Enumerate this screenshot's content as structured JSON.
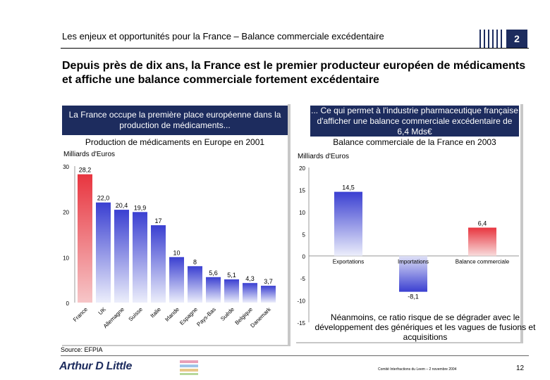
{
  "header": {
    "title_part1": "Les enjeux et opportunités pour la France",
    "title_sep": " – ",
    "title_part2": "Balance commerciale excédentaire",
    "section_number": "2"
  },
  "main_title": "Depuis près de dix ans, la France est le premier producteur européen de médicaments et affiche une balance commerciale fortement excédentaire",
  "left_panel": {
    "callout": "La France occupe la première place européenne dans la production de médicaments...",
    "chart_title": "Production de médicaments en Europe en 2001",
    "unit": "Milliards d'Euros"
  },
  "right_panel": {
    "callout": "... Ce qui permet à l'industrie pharmaceutique française d'afficher une balance commerciale excédentaire de 6,4 Mds€",
    "chart_title": "Balance commerciale de la France en 2003",
    "unit": "Milliards d'Euros",
    "note": "Néanmoins, ce ratio risque de se dégrader avec le développement des génériques et les vagues de fusions et acquisitions"
  },
  "footer": {
    "source": "Source: EFPIA",
    "logo_text": "Arthur D Little",
    "event": "Comité Interfractions du Leem – 2 novembre 2004",
    "page_number": "12"
  },
  "colors": {
    "navy": "#1d2c5e",
    "red": "#e8353f",
    "blue": "#3a3fd1"
  },
  "chart_data": [
    {
      "type": "bar",
      "title": "Production de médicaments en Europe en 2001",
      "ylabel": "Milliards d'Euros",
      "categories": [
        "France",
        "UK",
        "Allemagne",
        "Suisse",
        "Italie",
        "Irlande",
        "Espagne",
        "Pays-Bas",
        "Suède",
        "Belgique",
        "Danemark"
      ],
      "values": [
        28.2,
        22.0,
        20.4,
        19.9,
        17,
        10,
        8,
        5.6,
        5.1,
        4.3,
        3.7
      ],
      "value_labels": [
        "28,2",
        "22,0",
        "20,4",
        "19,9",
        "17",
        "10",
        "8",
        "5,6",
        "5,1",
        "4,3",
        "3,7"
      ],
      "yticks": [
        "30",
        "20",
        "10",
        "0"
      ],
      "ylim": [
        0,
        30
      ]
    },
    {
      "type": "bar",
      "title": "Balance commerciale de la France en 2003",
      "ylabel": "Milliards d'Euros",
      "categories": [
        "Exportations",
        "Importations",
        "Balance commerciale"
      ],
      "values": [
        14.5,
        -8.1,
        6.4
      ],
      "value_labels": [
        "14,5",
        "-8,1",
        "6,4"
      ],
      "yticks": [
        "20",
        "15",
        "10",
        "5",
        "0",
        "-5",
        "-10",
        "-15"
      ],
      "ylim": [
        -15,
        20
      ]
    }
  ]
}
